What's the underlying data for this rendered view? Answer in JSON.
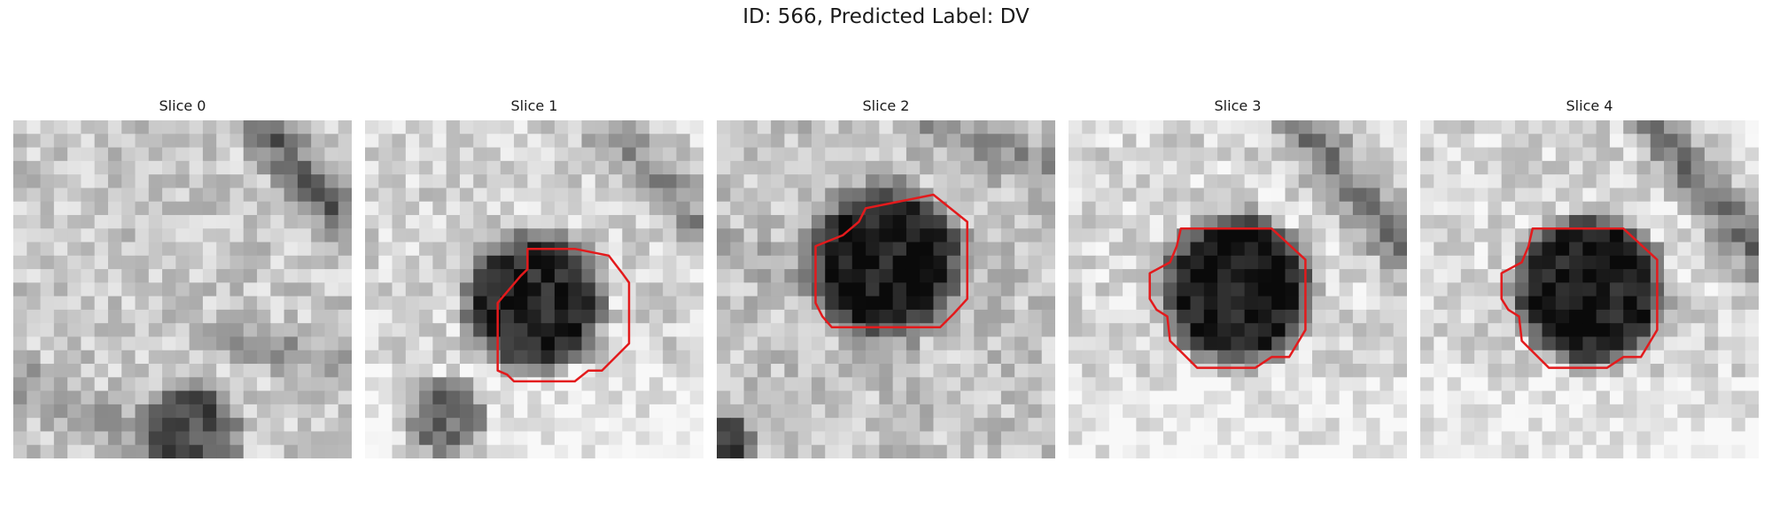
{
  "figure": {
    "title": "ID: 566, Predicted Label: DV"
  },
  "slices": [
    {
      "label": "Slice 0",
      "has_contour": false,
      "contour_color": "#e31a1c"
    },
    {
      "label": "Slice 1",
      "has_contour": true,
      "contour_color": "#e31a1c"
    },
    {
      "label": "Slice 2",
      "has_contour": true,
      "contour_color": "#e31a1c"
    },
    {
      "label": "Slice 3",
      "has_contour": true,
      "contour_color": "#e31a1c"
    },
    {
      "label": "Slice 4",
      "has_contour": true,
      "contour_color": "#e31a1c"
    }
  ],
  "colormap": "grayscale"
}
